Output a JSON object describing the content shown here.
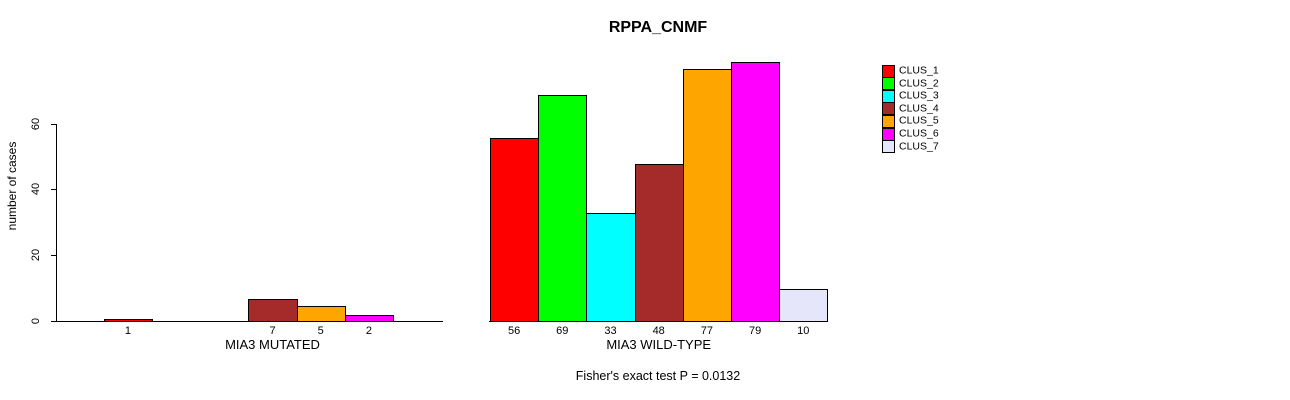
{
  "title": "RPPA_CNMF",
  "y_axis": {
    "label": "number of cases",
    "ticks": [
      0,
      20,
      40,
      60
    ]
  },
  "caption": "Fisher's exact test P = 0.0132",
  "legend": {
    "position": "right",
    "items": [
      {
        "label": "CLUS_1",
        "color": "#FF0000"
      },
      {
        "label": "CLUS_2",
        "color": "#00FF00"
      },
      {
        "label": "CLUS_3",
        "color": "#00FFFF"
      },
      {
        "label": "CLUS_4",
        "color": "#A52A2A"
      },
      {
        "label": "CLUS_5",
        "color": "#FFA500"
      },
      {
        "label": "CLUS_6",
        "color": "#FF00FF"
      },
      {
        "label": "CLUS_7",
        "color": "#E6E6FA"
      }
    ]
  },
  "chart_data": {
    "type": "bar",
    "title": "RPPA_CNMF",
    "ylabel": "number of cases",
    "yticks": [
      0,
      20,
      40,
      60
    ],
    "ylim": [
      0,
      80
    ],
    "grid": false,
    "legend_position": "right",
    "clusters": [
      "CLUS_1",
      "CLUS_2",
      "CLUS_3",
      "CLUS_4",
      "CLUS_5",
      "CLUS_6",
      "CLUS_7"
    ],
    "colors": [
      "#FF0000",
      "#00FF00",
      "#00FFFF",
      "#A52A2A",
      "#FFA500",
      "#FF00FF",
      "#E6E6FA"
    ],
    "groups": [
      {
        "label": "MIA3 MUTATED",
        "values": [
          1,
          0,
          0,
          7,
          5,
          2,
          0
        ]
      },
      {
        "label": "MIA3 WILD-TYPE",
        "values": [
          56,
          69,
          33,
          48,
          77,
          79,
          10
        ]
      }
    ],
    "caption": "Fisher's exact test P = 0.0132"
  }
}
